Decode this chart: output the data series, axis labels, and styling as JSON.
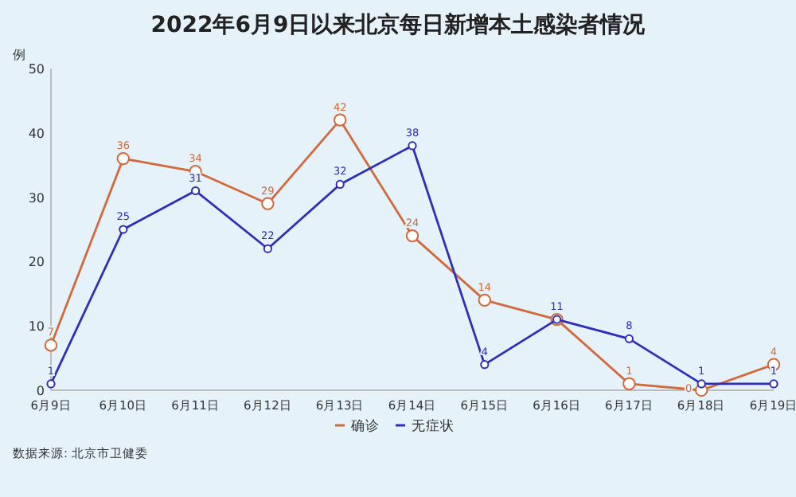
{
  "chart_data": {
    "type": "line",
    "title": "2022年6月9日以来北京每日新增本土感染者情况",
    "ylabel": "例",
    "categories": [
      "6月9日",
      "6月10日",
      "6月11日",
      "6月12日",
      "6月13日",
      "6月14日",
      "6月15日",
      "6月16日",
      "6月17日",
      "6月18日",
      "6月19日"
    ],
    "series": [
      {
        "name": "确诊",
        "color": "#d2693a",
        "values": [
          7,
          36,
          34,
          29,
          42,
          24,
          14,
          11,
          1,
          0,
          4
        ],
        "value_labels": [
          "7",
          "36",
          "34",
          "29",
          "42",
          "24",
          "14",
          null,
          "1",
          "0",
          "4"
        ]
      },
      {
        "name": "无症状",
        "color": "#2e2eb8",
        "values": [
          1,
          25,
          31,
          22,
          32,
          38,
          4,
          11,
          8,
          1,
          1
        ],
        "value_labels": [
          "1",
          "25",
          "31",
          "22",
          "32",
          "38",
          "4",
          "11",
          "8",
          "1",
          "1"
        ]
      }
    ],
    "ylim": [
      0,
      50
    ],
    "yticks": [
      0,
      10,
      20,
      30,
      40,
      50
    ],
    "legend": "bottom",
    "marker": "circle",
    "annotations": [
      "数据来源: 北京市卫健委"
    ]
  }
}
